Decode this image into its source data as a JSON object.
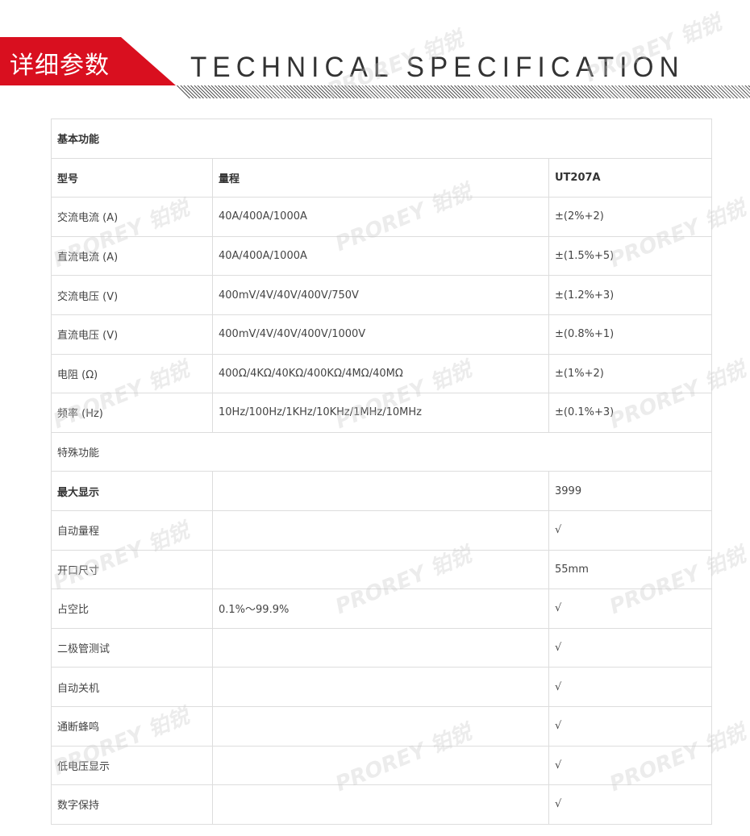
{
  "header": {
    "title_cn": "详细参数",
    "title_en": "TECHNICAL SPECIFICATION",
    "accent": "#d90f1f"
  },
  "watermark": "PROREY 铂锐",
  "table": {
    "section1": "基本功能",
    "columns": [
      "型号",
      "量程",
      "UT207A"
    ],
    "rows1": [
      [
        "交流电流 (A)",
        "40A/400A/1000A",
        "±(2%+2)"
      ],
      [
        "直流电流 (A)",
        "40A/400A/1000A",
        "±(1.5%+5)"
      ],
      [
        "交流电压 (V)",
        "400mV/4V/40V/400V/750V",
        "±(1.2%+3)"
      ],
      [
        "直流电压 (V)",
        "400mV/4V/40V/400V/1000V",
        "±(0.8%+1)"
      ],
      [
        "电阻 (Ω)",
        "400Ω/4KΩ/40KΩ/400KΩ/4MΩ/40MΩ",
        "±(1%+2)"
      ],
      [
        "频率 (Hz)",
        "10Hz/100Hz/1KHz/10KHz/1MHz/10MHz",
        "±(0.1%+3)"
      ]
    ],
    "section2": "特殊功能",
    "rows2": [
      [
        "最大显示",
        "",
        "3999"
      ],
      [
        "自动量程",
        "",
        "√"
      ],
      [
        "开口尺寸",
        "",
        "55mm"
      ],
      [
        "占空比",
        "0.1%～99.9%",
        "√"
      ],
      [
        "二极管测试",
        "",
        "√"
      ],
      [
        "自动关机",
        "",
        "√"
      ],
      [
        "通断蜂鸣",
        "",
        "√"
      ],
      [
        "低电压显示",
        "",
        "√"
      ],
      [
        "数字保持",
        "",
        "√"
      ]
    ]
  }
}
